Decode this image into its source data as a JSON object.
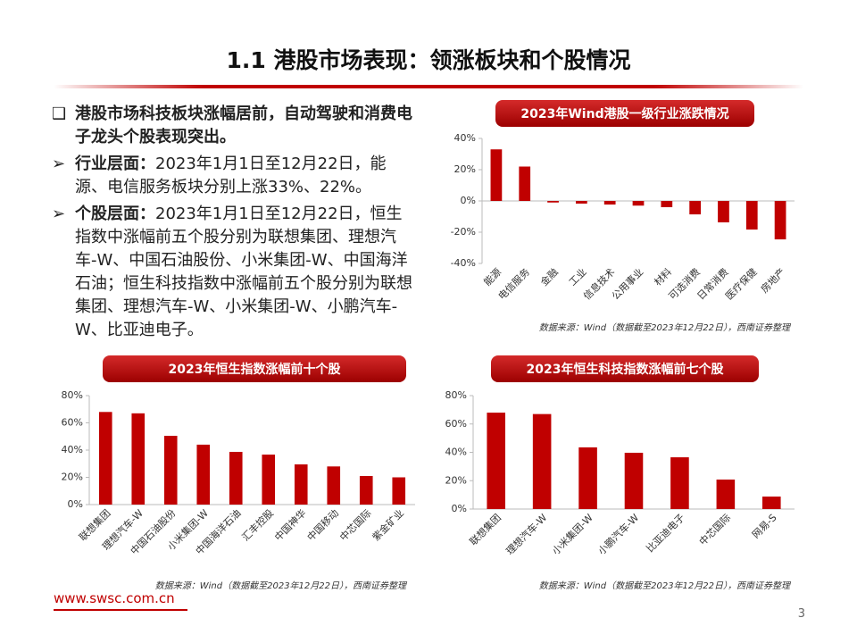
{
  "header": {
    "title": "1.1 港股市场表现：领涨板块和个股情况"
  },
  "bullets": [
    {
      "lead": "港股市场科技板块涨幅居前，自动驾驶和消费电子龙头个股表现突出。",
      "text": ""
    },
    {
      "lead": "行业层面：",
      "text": "2023年1月1日至12月22日，能源、电信服务板块分别上涨33%、22%。"
    },
    {
      "lead": "个股层面：",
      "text": "2023年1月1日至12月22日，恒生指数中涨幅前五个股分别为联想集团、理想汽车-W、中国石油股份、小米集团-W、中国海洋石油；恒生科技指数中涨幅前五个股分别为联想集团、理想汽车-W、小米集团-W、小鹏汽车-W、比亚迪电子。"
    }
  ],
  "chart_data": [
    {
      "type": "bar",
      "title": "2023年Wind港股一级行业涨跌情况",
      "color": "#c00000",
      "categories": [
        "能源",
        "电信服务",
        "金融",
        "工业",
        "信息技术",
        "公用事业",
        "材料",
        "可选消费",
        "日常消费",
        "医疗保健",
        "房地产"
      ],
      "values": [
        33,
        22,
        -1,
        -1.7,
        -2.3,
        -3,
        -4,
        -8.6,
        -13.7,
        -18.3,
        -24.6
      ],
      "ylim": [
        -40,
        40
      ],
      "yticks": [
        {
          "value": -40,
          "label": "-40%"
        },
        {
          "value": -20,
          "label": "-20%"
        },
        {
          "value": 0,
          "label": "0%"
        },
        {
          "value": 20,
          "label": "20%"
        },
        {
          "value": 40,
          "label": "40%"
        }
      ],
      "source": "数据来源：Wind（数据截至2023年12月22日），西南证券整理"
    },
    {
      "type": "bar",
      "title": "2023年恒生指数涨幅前十个股",
      "color": "#c00000",
      "categories": [
        "联想集团",
        "理想汽车-W",
        "中国石油股份",
        "小米集团-W",
        "中国海洋石油",
        "汇丰控股",
        "中国神华",
        "中国移动",
        "中芯国际",
        "紫金矿业"
      ],
      "values": [
        68,
        67,
        50.5,
        44,
        38.7,
        36.7,
        29.5,
        28,
        21,
        20
      ],
      "ylim": [
        0,
        80
      ],
      "yticks": [
        {
          "value": 0,
          "label": "0%"
        },
        {
          "value": 20,
          "label": "20%"
        },
        {
          "value": 40,
          "label": "40%"
        },
        {
          "value": 60,
          "label": "60%"
        },
        {
          "value": 80,
          "label": "80%"
        }
      ],
      "source": "数据来源：Wind（数据截至2023年12月22日），西南证券整理"
    },
    {
      "type": "bar",
      "title": "2023年恒生科技指数涨幅前七个股",
      "color": "#c00000",
      "categories": [
        "联想集团",
        "理想汽车-W",
        "小米集团-W",
        "小鹏汽车-W",
        "比亚迪电子",
        "中芯国际",
        "网易-S"
      ],
      "values": [
        68,
        67,
        43.5,
        39.7,
        36.5,
        20.8,
        8.8
      ],
      "ylim": [
        0,
        80
      ],
      "yticks": [
        {
          "value": 0,
          "label": "0%"
        },
        {
          "value": 20,
          "label": "20%"
        },
        {
          "value": 40,
          "label": "40%"
        },
        {
          "value": 60,
          "label": "60%"
        },
        {
          "value": 80,
          "label": "80%"
        }
      ],
      "source": "数据来源：Wind（数据截至2023年12月22日），西南证券整理"
    }
  ],
  "footer": {
    "url": "www.swsc.com.cn",
    "page": "3"
  }
}
